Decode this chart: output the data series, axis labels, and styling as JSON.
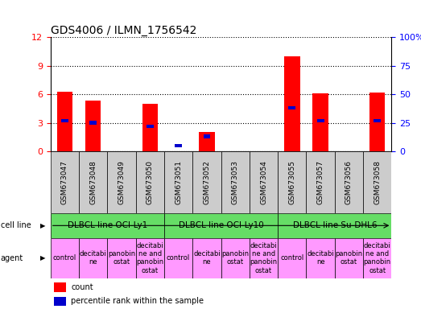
{
  "title": "GDS4006 / ILMN_1756542",
  "samples": [
    "GSM673047",
    "GSM673048",
    "GSM673049",
    "GSM673050",
    "GSM673051",
    "GSM673052",
    "GSM673053",
    "GSM673054",
    "GSM673055",
    "GSM673057",
    "GSM673056",
    "GSM673058"
  ],
  "count_values": [
    6.3,
    5.3,
    0.0,
    5.0,
    0.0,
    2.0,
    0.0,
    0.0,
    10.0,
    6.1,
    0.0,
    6.2
  ],
  "percentile_values": [
    27.0,
    25.0,
    0.0,
    22.0,
    5.0,
    13.0,
    0.0,
    0.0,
    38.0,
    27.0,
    0.0,
    27.0
  ],
  "ylim_left": [
    0,
    12
  ],
  "ylim_right": [
    0,
    100
  ],
  "yticks_left": [
    0,
    3,
    6,
    9,
    12
  ],
  "yticks_right": [
    0,
    25,
    50,
    75,
    100
  ],
  "cell_lines": [
    {
      "label": "DLBCL line OCI-Ly1",
      "start": 0,
      "end": 4,
      "color": "#66DD66"
    },
    {
      "label": "DLBCL line OCI-Ly10",
      "start": 4,
      "end": 8,
      "color": "#66DD66"
    },
    {
      "label": "DLBCL line Su-DHL6",
      "start": 8,
      "end": 12,
      "color": "#66DD66"
    }
  ],
  "agents": [
    "control",
    "decitabi\nne",
    "panobin\nostat",
    "decitabi\nne and\npanobin\nostat",
    "control",
    "decitabi\nne",
    "panobin\nostat",
    "decitabi\nne and\npanobin\nostat",
    "control",
    "decitabi\nne",
    "panobin\nostat",
    "decitabi\nne and\npanobin\nostat"
  ],
  "agent_color": "#FF99FF",
  "bar_color": "#FF0000",
  "percentile_color": "#0000CC",
  "background_color": "#FFFFFF",
  "tick_bg_color": "#CCCCCC",
  "title_fontsize": 10,
  "tick_fontsize": 6.5,
  "cell_fontsize": 7.5,
  "agent_fontsize": 6.0,
  "legend_fontsize": 7
}
